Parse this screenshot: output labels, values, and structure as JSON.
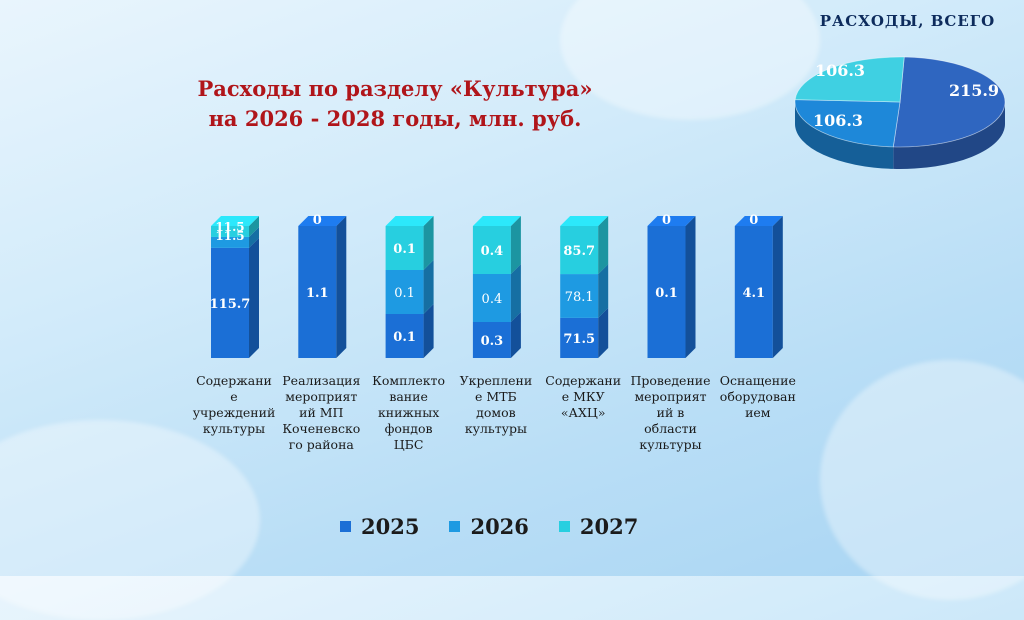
{
  "title_lines": [
    "Расходы по разделу «Культура»",
    "на 2026 - 2028 годы, млн. руб."
  ],
  "pie": {
    "title": "РАСХОДЫ, ВСЕГО",
    "slices": [
      {
        "label": "215.9",
        "value": 215.9,
        "color": "#2f66c0"
      },
      {
        "label": "106.3",
        "value": 106.3,
        "color": "#1e88d9"
      },
      {
        "label": "106.3",
        "value": 106.3,
        "color": "#3fd0e2"
      }
    ]
  },
  "chart_data": {
    "type": "bar",
    "stacked": true,
    "categories": [
      "Содержани\nе\nучреждений\nкультуры",
      "Реализация\nмероприят\nий МП\nКоченевско\nго района",
      "Комплекто\nвание\nкнижных\nфондов\nЦБС",
      "Укреплени\nе МТБ\nдомов\nкультуры",
      "Содержани\nе МКУ\n«АХЦ»",
      "Проведение\nмероприят\nий в\nобласти\nкультуры",
      "Оснащение\nоборудован\nием"
    ],
    "series": [
      {
        "name": "2025",
        "color": "#1b6fd6",
        "values": [
          115.7,
          1.1,
          0.1,
          0.3,
          71.5,
          0.1,
          4.1
        ]
      },
      {
        "name": "2026",
        "color": "#1e9ae2",
        "values": [
          11.5,
          0,
          0.1,
          0.4,
          78.1,
          0,
          0
        ]
      },
      {
        "name": "2027",
        "color": "#27cfe0",
        "values": [
          11.5,
          0,
          0.1,
          0.4,
          85.7,
          0,
          0
        ]
      }
    ],
    "labels": [
      [
        "115.7",
        "11.5",
        "11.5"
      ],
      [
        "1.1",
        "",
        "0"
      ],
      [
        "0.1",
        "0.1",
        "0.1"
      ],
      [
        "0.3",
        "0.4",
        "0.4"
      ],
      [
        "71.5",
        "78.1",
        "85.7"
      ],
      [
        "0.1",
        "",
        "0"
      ],
      [
        "4.1",
        "",
        "0"
      ]
    ]
  }
}
